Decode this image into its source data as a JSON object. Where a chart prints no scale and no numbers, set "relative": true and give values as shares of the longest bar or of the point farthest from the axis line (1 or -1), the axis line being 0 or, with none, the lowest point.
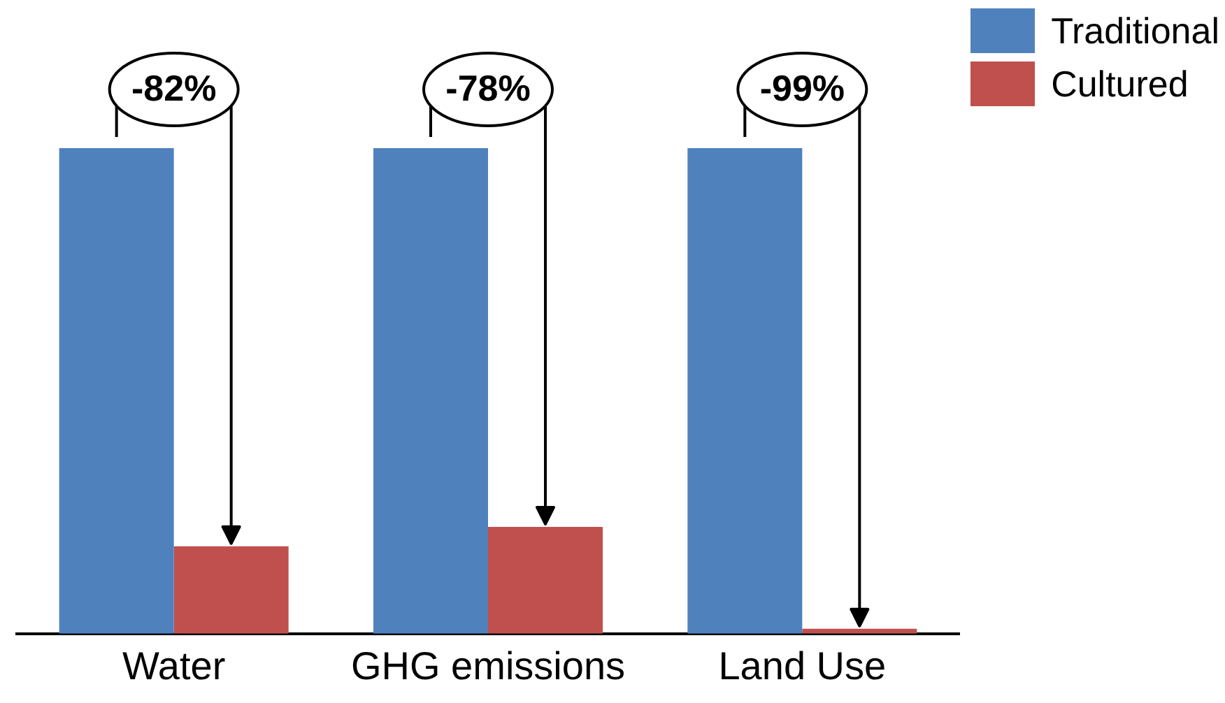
{
  "chart_data": {
    "type": "bar",
    "relative": true,
    "categories": [
      "Water",
      "GHG emissions",
      "Land Use"
    ],
    "series": [
      {
        "name": "Traditional",
        "color": "#4f81bd",
        "values": [
          1,
          1,
          1
        ]
      },
      {
        "name": "Cultured",
        "color": "#c0504d",
        "values": [
          0.18,
          0.22,
          0.01
        ]
      }
    ],
    "annotations": [
      {
        "text": "-82%",
        "x": "Water",
        "y": 1
      },
      {
        "text": "-78%",
        "x": "GHG emissions",
        "y": 1
      },
      {
        "text": "-99%",
        "x": "Land Use",
        "y": 1
      }
    ],
    "legend": "top right",
    "grid": false
  }
}
